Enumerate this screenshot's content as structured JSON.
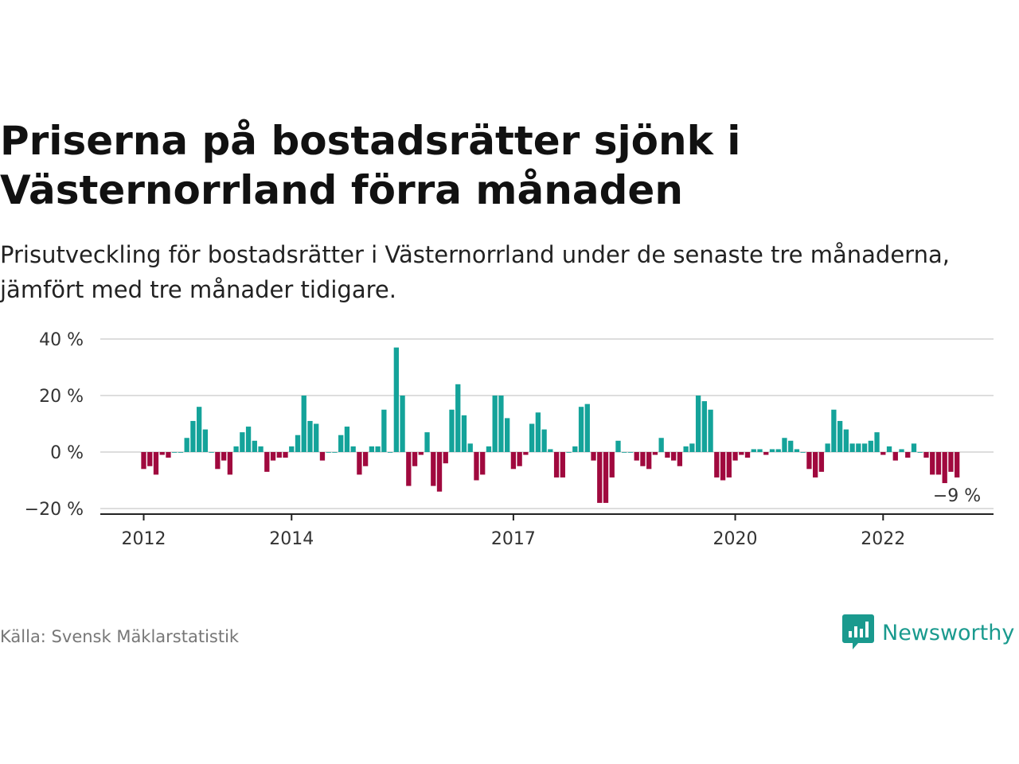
{
  "header": {
    "title": "Priserna på bostadsrätter sjönk i Västernorrland förra månaden",
    "subtitle": "Prisutveckling för bostadsrätter i Västernorrland under de senaste tre månaderna, jämfört med tre månader tidigare."
  },
  "footer": {
    "source": "Källa: Svensk Mäklarstatistik",
    "brand": "Newsworthy",
    "brand_icon": "bar-chart-speech-bubble-icon"
  },
  "colors": {
    "positive": "#14a39a",
    "negative": "#a0093e",
    "gridline": "#dddddd",
    "axis": "#222222",
    "brand": "#1a9a8e"
  },
  "chart_data": {
    "type": "bar",
    "ylim": [
      -20,
      40
    ],
    "yticks": [
      -20,
      0,
      20,
      40
    ],
    "ytick_labels": [
      "−20 %",
      "0 %",
      "20 %",
      "40 %"
    ],
    "xticks": [
      "2012",
      "2014",
      "2017",
      "2020",
      "2022"
    ],
    "xtick_labels": [
      "2012",
      "2014",
      "2017",
      "2020",
      "2022"
    ],
    "grid": true,
    "last_value_label": "−9 %",
    "x_start": "2012-01",
    "frequency": "monthly",
    "values": [
      -6,
      -5,
      -8,
      -1,
      -2,
      0,
      0,
      5,
      11,
      16,
      8,
      0,
      -6,
      -3,
      -8,
      2,
      7,
      9,
      4,
      2,
      -7,
      -3,
      -2,
      -2,
      2,
      6,
      20,
      11,
      10,
      -3,
      0,
      0,
      6,
      9,
      2,
      -8,
      -5,
      2,
      2,
      15,
      0,
      37,
      20,
      -12,
      -5,
      -1,
      7,
      -12,
      -14,
      -4,
      15,
      24,
      13,
      3,
      -10,
      -8,
      2,
      20,
      20,
      12,
      -6,
      -5,
      -1,
      10,
      14,
      8,
      1,
      -9,
      -9,
      0,
      2,
      16,
      17,
      -3,
      -18,
      -18,
      -9,
      4,
      0,
      0,
      -3,
      -5,
      -6,
      -1,
      5,
      -2,
      -3,
      -5,
      2,
      3,
      20,
      18,
      15,
      -9,
      -10,
      -9,
      -3,
      -1,
      -2,
      1,
      1,
      -1,
      1,
      1,
      5,
      4,
      1,
      0,
      -6,
      -9,
      -7,
      3,
      15,
      11,
      8,
      3,
      3,
      3,
      4,
      7,
      -1,
      2,
      -3,
      1,
      -2,
      3,
      0,
      -2,
      -8,
      -8,
      -11,
      -7,
      -9
    ]
  }
}
